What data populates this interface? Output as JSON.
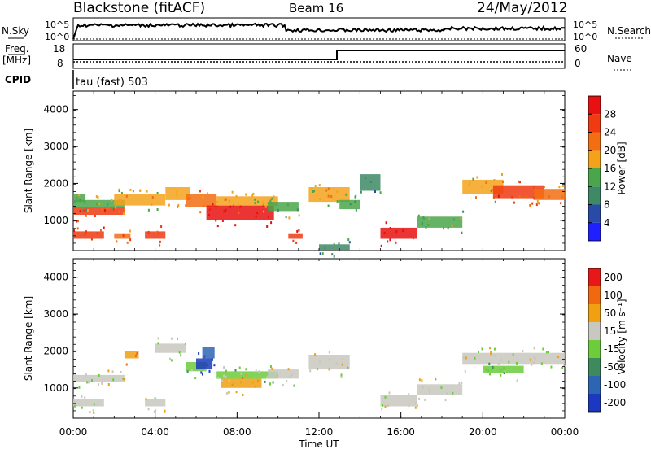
{
  "header": {
    "station": "Blackstone (fitACF)",
    "beam": "Beam 16",
    "date": "24/May/2012"
  },
  "top_panels": {
    "nsky_label": "N.Sky",
    "nsky_ticks": [
      "10^5",
      "10^0"
    ],
    "nsearch_label": "N.Search",
    "nsearch_ticks": [
      "10^5",
      "10^0"
    ],
    "freq_label": "Freq.",
    "freq_unit": "[MHz]",
    "freq_ticks": [
      "18",
      "8"
    ],
    "nave_label": "Nave",
    "nave_ticks": [
      "60",
      "0"
    ],
    "cpid_label": "CPID",
    "cpid_value": "tau (fast) 503"
  },
  "chart_data": [
    {
      "type": "heatmap",
      "name": "power-panel",
      "ylabel": "Slant Range [km]",
      "xlabel": "",
      "x_range_hours": [
        0,
        24
      ],
      "y_range_km": [
        180,
        4500
      ],
      "y_ticks": [
        "1000",
        "2000",
        "3000",
        "4000"
      ],
      "colorbar": {
        "label": "Power [dB]",
        "ticks": [
          "4",
          "8",
          "12",
          "16",
          "20",
          "24",
          "28"
        ],
        "colors": [
          "#1f1fff",
          "#2a4aa8",
          "#3e8a66",
          "#4aa64a",
          "#f4a21c",
          "#f36d12",
          "#f03a12",
          "#e81010"
        ]
      },
      "regions": [
        {
          "t0": 0.0,
          "t1": 0.6,
          "r0": 1500,
          "r1": 1700,
          "level": 3
        },
        {
          "t0": 0.0,
          "t1": 2.5,
          "r0": 1150,
          "r1": 1350,
          "level": 6
        },
        {
          "t0": 0.0,
          "t1": 2.5,
          "r0": 1350,
          "r1": 1550,
          "level": 3
        },
        {
          "t0": 2.0,
          "t1": 4.5,
          "r0": 1400,
          "r1": 1700,
          "level": 4
        },
        {
          "t0": 4.5,
          "t1": 5.7,
          "r0": 1550,
          "r1": 1900,
          "level": 4
        },
        {
          "t0": 5.5,
          "t1": 7.0,
          "r0": 1350,
          "r1": 1700,
          "level": 5
        },
        {
          "t0": 6.5,
          "t1": 9.8,
          "r0": 1000,
          "r1": 1400,
          "level": 7
        },
        {
          "t0": 7.0,
          "t1": 10.0,
          "r0": 1400,
          "r1": 1650,
          "level": 4
        },
        {
          "t0": 9.5,
          "t1": 11.0,
          "r0": 1250,
          "r1": 1500,
          "level": 3
        },
        {
          "t0": 11.5,
          "t1": 13.5,
          "r0": 1500,
          "r1": 1900,
          "level": 4
        },
        {
          "t0": 13.0,
          "t1": 14.0,
          "r0": 1300,
          "r1": 1550,
          "level": 3
        },
        {
          "t0": 14.0,
          "t1": 15.0,
          "r0": 1800,
          "r1": 2250,
          "level": 2
        },
        {
          "t0": 15.0,
          "t1": 16.8,
          "r0": 500,
          "r1": 800,
          "level": 7
        },
        {
          "t0": 16.8,
          "t1": 19.0,
          "r0": 800,
          "r1": 1100,
          "level": 3
        },
        {
          "t0": 19.0,
          "t1": 21.0,
          "r0": 1700,
          "r1": 2100,
          "level": 4
        },
        {
          "t0": 20.5,
          "t1": 23.0,
          "r0": 1600,
          "r1": 1950,
          "level": 6
        },
        {
          "t0": 22.5,
          "t1": 24.0,
          "r0": 1550,
          "r1": 1850,
          "level": 5
        },
        {
          "t0": 0.0,
          "t1": 1.5,
          "r0": 500,
          "r1": 700,
          "level": 6
        },
        {
          "t0": 2.0,
          "t1": 2.8,
          "r0": 500,
          "r1": 650,
          "level": 5
        },
        {
          "t0": 3.5,
          "t1": 4.5,
          "r0": 500,
          "r1": 700,
          "level": 6
        },
        {
          "t0": 10.5,
          "t1": 11.2,
          "r0": 500,
          "r1": 650,
          "level": 6
        },
        {
          "t0": 12.0,
          "t1": 13.5,
          "r0": 200,
          "r1": 350,
          "level": 2
        }
      ]
    },
    {
      "type": "heatmap",
      "name": "velocity-panel",
      "ylabel": "Slant Range [km]",
      "xlabel": "Time UT",
      "x_range_hours": [
        0,
        24
      ],
      "y_range_km": [
        180,
        4500
      ],
      "x_ticks": [
        "00:00",
        "04:00",
        "08:00",
        "12:00",
        "16:00",
        "20:00",
        "00:00"
      ],
      "y_ticks": [
        "1000",
        "2000",
        "3000",
        "4000"
      ],
      "colorbar": {
        "label": "Velocity [m s⁻¹]",
        "ticks": [
          "200",
          "100",
          "50",
          "15",
          "-15",
          "-50",
          "-100",
          "-200"
        ],
        "colors": [
          "#1c38c0",
          "#2e64b4",
          "#3d8a5c",
          "#6ccc3c",
          "#c8c8c0",
          "#f0a010",
          "#f06810",
          "#e81818"
        ]
      },
      "regions": [
        {
          "t0": 0.0,
          "t1": 2.5,
          "r0": 1150,
          "r1": 1350,
          "level": 4
        },
        {
          "t0": 0.0,
          "t1": 1.5,
          "r0": 500,
          "r1": 700,
          "level": 4
        },
        {
          "t0": 2.5,
          "t1": 3.2,
          "r0": 1800,
          "r1": 2000,
          "level": 5
        },
        {
          "t0": 3.5,
          "t1": 4.5,
          "r0": 500,
          "r1": 700,
          "level": 4
        },
        {
          "t0": 4.0,
          "t1": 5.5,
          "r0": 1950,
          "r1": 2200,
          "level": 4
        },
        {
          "t0": 5.5,
          "t1": 6.5,
          "r0": 1450,
          "r1": 1700,
          "level": 3
        },
        {
          "t0": 6.0,
          "t1": 6.8,
          "r0": 1500,
          "r1": 1800,
          "level": 0
        },
        {
          "t0": 6.3,
          "t1": 6.9,
          "r0": 1800,
          "r1": 2100,
          "level": 1
        },
        {
          "t0": 7.0,
          "t1": 10.0,
          "r0": 1250,
          "r1": 1450,
          "level": 3
        },
        {
          "t0": 7.2,
          "t1": 9.2,
          "r0": 1000,
          "r1": 1250,
          "level": 5
        },
        {
          "t0": 9.5,
          "t1": 11.0,
          "r0": 1250,
          "r1": 1500,
          "level": 4
        },
        {
          "t0": 11.5,
          "t1": 13.5,
          "r0": 1500,
          "r1": 1900,
          "level": 4
        },
        {
          "t0": 15.0,
          "t1": 16.8,
          "r0": 500,
          "r1": 800,
          "level": 4
        },
        {
          "t0": 16.8,
          "t1": 19.0,
          "r0": 800,
          "r1": 1100,
          "level": 4
        },
        {
          "t0": 19.0,
          "t1": 24.0,
          "r0": 1650,
          "r1": 1950,
          "level": 4
        },
        {
          "t0": 20.0,
          "t1": 22.0,
          "r0": 1400,
          "r1": 1600,
          "level": 3
        }
      ]
    }
  ]
}
